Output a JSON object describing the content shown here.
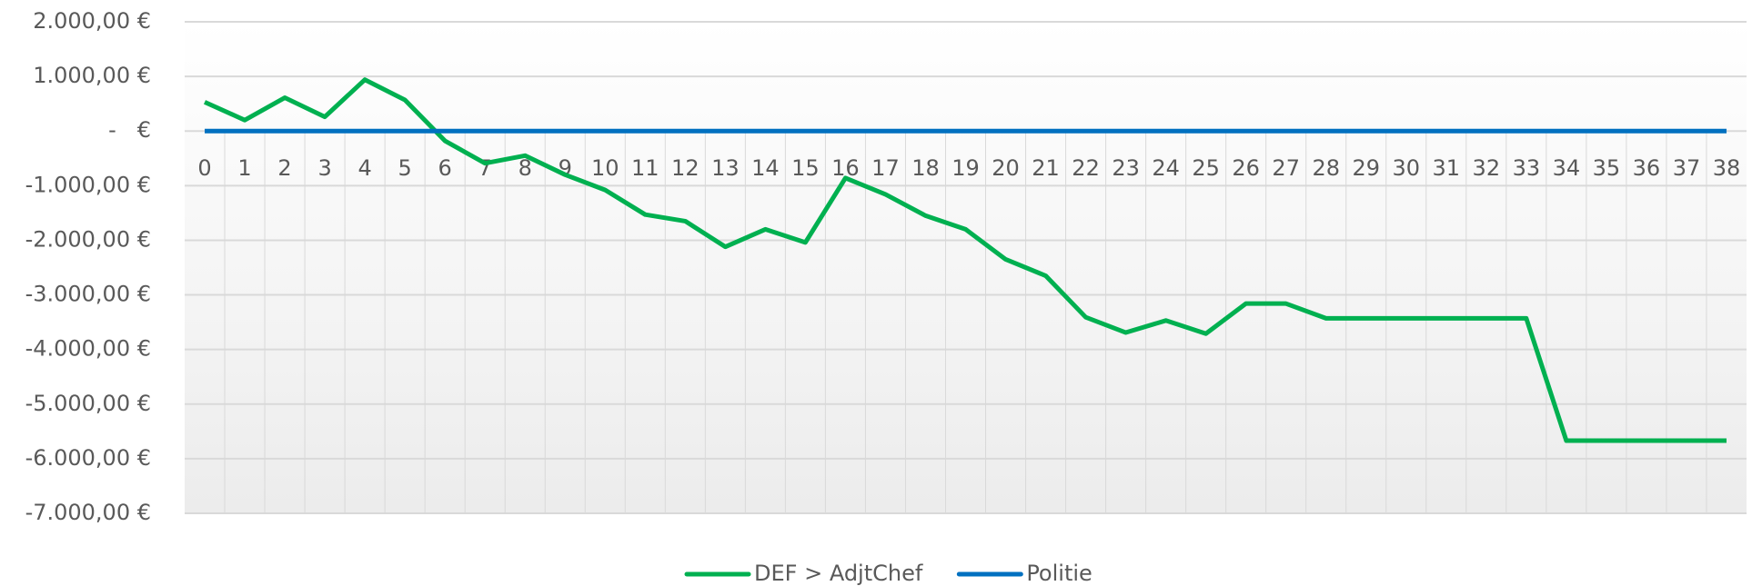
{
  "chart_data": {
    "type": "line",
    "categories": [
      "0",
      "1",
      "2",
      "3",
      "4",
      "5",
      "6",
      "7",
      "8",
      "9",
      "10",
      "11",
      "12",
      "13",
      "14",
      "15",
      "16",
      "17",
      "18",
      "19",
      "20",
      "21",
      "22",
      "23",
      "24",
      "25",
      "26",
      "27",
      "28",
      "29",
      "30",
      "31",
      "32",
      "33",
      "34",
      "35",
      "36",
      "37",
      "38"
    ],
    "series": [
      {
        "name": "DEF > AdjtChef",
        "color": "#00b050",
        "values": [
          530,
          200,
          610,
          260,
          940,
          570,
          -180,
          -590,
          -450,
          -800,
          -1080,
          -1530,
          -1650,
          -2120,
          -1800,
          -2040,
          -860,
          -1160,
          -1550,
          -1800,
          -2350,
          -2650,
          -3410,
          -3690,
          -3470,
          -3710,
          -3160,
          -3160,
          -3430,
          -3430,
          -3430,
          -3430,
          -3430,
          -3430,
          -5670,
          -5670,
          -5670,
          -5670,
          -5670
        ]
      },
      {
        "name": "Politie",
        "color": "#0070c0",
        "values": [
          0,
          0,
          0,
          0,
          0,
          0,
          0,
          0,
          0,
          0,
          0,
          0,
          0,
          0,
          0,
          0,
          0,
          0,
          0,
          0,
          0,
          0,
          0,
          0,
          0,
          0,
          0,
          0,
          0,
          0,
          0,
          0,
          0,
          0,
          0,
          0,
          0,
          0,
          0
        ]
      }
    ],
    "ylim": [
      -7000,
      2000
    ],
    "yticks": [
      {
        "value": 2000,
        "label": "2.000,00 €"
      },
      {
        "value": 1000,
        "label": "1.000,00 €"
      },
      {
        "value": 0,
        "label": "-   €"
      },
      {
        "value": -1000,
        "label": "-1.000,00 €"
      },
      {
        "value": -2000,
        "label": "-2.000,00 €"
      },
      {
        "value": -3000,
        "label": "-3.000,00 €"
      },
      {
        "value": -4000,
        "label": "-4.000,00 €"
      },
      {
        "value": -5000,
        "label": "-5.000,00 €"
      },
      {
        "value": -6000,
        "label": "-6.000,00 €"
      },
      {
        "value": -7000,
        "label": "-7.000,00 €"
      }
    ],
    "grid": true,
    "legend": "bottom"
  }
}
